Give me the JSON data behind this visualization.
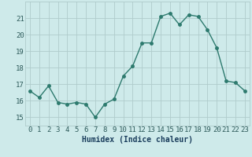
{
  "x": [
    0,
    1,
    2,
    3,
    4,
    5,
    6,
    7,
    8,
    9,
    10,
    11,
    12,
    13,
    14,
    15,
    16,
    17,
    18,
    19,
    20,
    21,
    22,
    23
  ],
  "y": [
    16.6,
    16.2,
    16.9,
    15.9,
    15.8,
    15.9,
    15.8,
    15.0,
    15.8,
    16.1,
    17.5,
    18.1,
    19.5,
    19.5,
    21.1,
    21.3,
    20.6,
    21.2,
    21.1,
    20.3,
    19.2,
    17.2,
    17.1,
    16.6
  ],
  "line_color": "#2d7a6e",
  "marker": "o",
  "markersize": 2.5,
  "linewidth": 1.0,
  "bg_color": "#ceeaea",
  "grid_color": "#b0cccc",
  "xlabel": "Humidex (Indice chaleur)",
  "ylim": [
    14.5,
    22.0
  ],
  "xlim": [
    -0.5,
    23.5
  ],
  "yticks": [
    15,
    16,
    17,
    18,
    19,
    20,
    21
  ],
  "xticks": [
    0,
    1,
    2,
    3,
    4,
    5,
    6,
    7,
    8,
    9,
    10,
    11,
    12,
    13,
    14,
    15,
    16,
    17,
    18,
    19,
    20,
    21,
    22,
    23
  ],
  "xlabel_fontsize": 7,
  "tick_fontsize": 6.5
}
